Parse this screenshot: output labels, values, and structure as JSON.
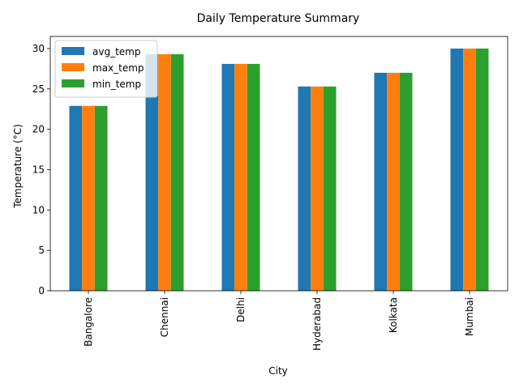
{
  "chart_data": {
    "type": "bar",
    "title": "Daily Temperature Summary",
    "xlabel": "City",
    "ylabel": "Temperature (°C)",
    "categories": [
      "Bangalore",
      "Chennai",
      "Delhi",
      "Hyderabad",
      "Kolkata",
      "Mumbai"
    ],
    "series": [
      {
        "name": "avg_temp",
        "color": "#1f77b4",
        "values": [
          22.9,
          29.3,
          28.1,
          25.3,
          27.0,
          30.0
        ]
      },
      {
        "name": "max_temp",
        "color": "#ff7f0e",
        "values": [
          22.9,
          29.3,
          28.1,
          25.3,
          27.0,
          30.0
        ]
      },
      {
        "name": "min_temp",
        "color": "#2ca02c",
        "values": [
          22.9,
          29.3,
          28.1,
          25.3,
          27.0,
          30.0
        ]
      }
    ],
    "yticks": [
      "0",
      "5",
      "10",
      "15",
      "20",
      "25",
      "30"
    ],
    "ylim": [
      0,
      31.5
    ],
    "grid": false,
    "legend_position": "top-left",
    "x_tick_rotation": "vertical"
  }
}
